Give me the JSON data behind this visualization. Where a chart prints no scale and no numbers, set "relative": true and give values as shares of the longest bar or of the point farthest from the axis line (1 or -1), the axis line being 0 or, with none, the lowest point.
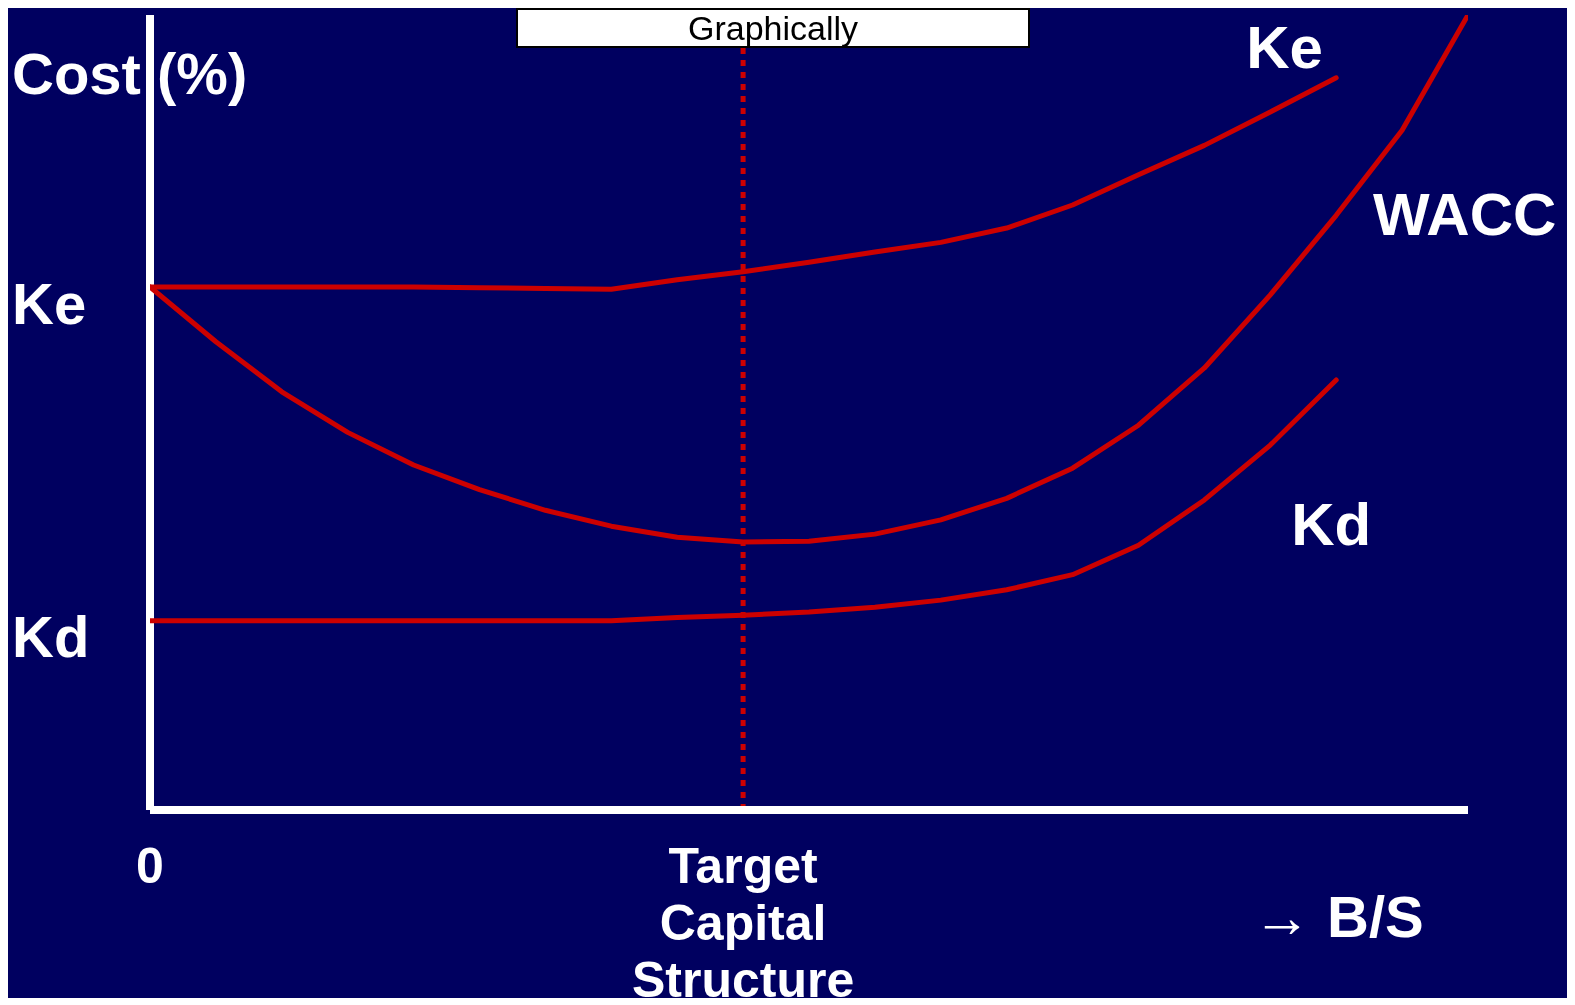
{
  "chart_data": {
    "type": "line",
    "title": "Graphically",
    "ylabel": "Cost (%)",
    "xlabel": "→ B/S",
    "relative": true,
    "marker": "none",
    "line_style": "solid",
    "categories": [
      "0",
      null,
      null,
      null,
      null,
      null,
      null,
      null,
      null,
      "Target Capital Structure",
      null,
      null,
      null,
      null,
      null,
      null,
      null,
      null,
      null,
      null,
      null
    ],
    "series": [
      {
        "name": "Ke",
        "color": "#cc0000",
        "values": [
          0.658,
          0.658,
          0.658,
          0.658,
          0.658,
          0.657,
          0.656,
          0.655,
          0.667,
          0.677,
          0.689,
          0.702,
          0.714,
          0.732,
          0.761,
          0.799,
          0.836,
          0.878,
          0.921,
          null,
          null
        ]
      },
      {
        "name": "WACC",
        "color": "#cc0000",
        "values": [
          0.658,
          0.589,
          0.526,
          0.475,
          0.434,
          0.403,
          0.377,
          0.357,
          0.343,
          0.337,
          0.338,
          0.347,
          0.365,
          0.392,
          0.43,
          0.484,
          0.556,
          0.648,
          0.748,
          0.855,
          1
        ]
      },
      {
        "name": "Kd",
        "color": "#cc0000",
        "values": [
          0.238,
          0.238,
          0.238,
          0.238,
          0.238,
          0.238,
          0.238,
          0.238,
          0.242,
          0.245,
          0.249,
          0.255,
          0.264,
          0.277,
          0.296,
          0.333,
          0.39,
          0.459,
          0.541,
          null,
          null
        ]
      }
    ],
    "ref_lines": [
      {
        "axis": "x",
        "value": "Target Capital Structure",
        "color": "#cc0000",
        "line_style": "dotted"
      }
    ],
    "annotations": [
      "Ke",
      "Kd"
    ]
  }
}
